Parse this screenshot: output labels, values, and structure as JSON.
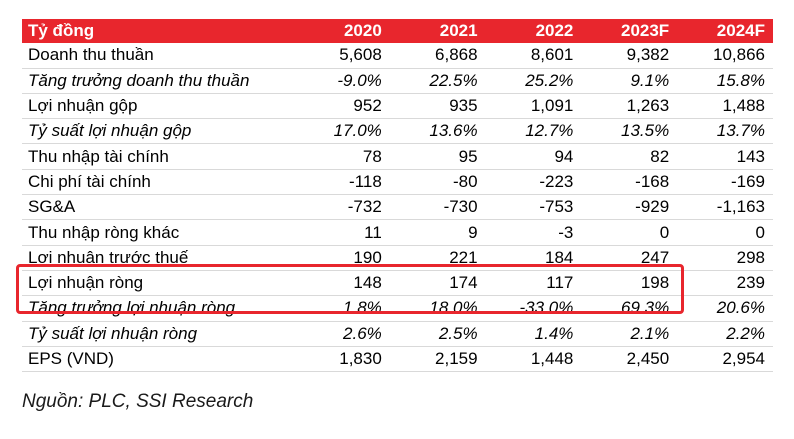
{
  "table": {
    "headers": [
      "Tỷ đồng",
      "2020",
      "2021",
      "2022",
      "2023F",
      "2024F"
    ],
    "rows": [
      {
        "label": "Doanh thu thuần",
        "italic": false,
        "values": [
          "5,608",
          "6,868",
          "8,601",
          "9,382",
          "10,866"
        ]
      },
      {
        "label": "Tăng trưởng doanh thu thuần",
        "italic": true,
        "values": [
          "-9.0%",
          "22.5%",
          "25.2%",
          "9.1%",
          "15.8%"
        ]
      },
      {
        "label": "Lợi nhuận gộp",
        "italic": false,
        "values": [
          "952",
          "935",
          "1,091",
          "1,263",
          "1,488"
        ]
      },
      {
        "label": "Tỷ suất lợi nhuận gộp",
        "italic": true,
        "values": [
          "17.0%",
          "13.6%",
          "12.7%",
          "13.5%",
          "13.7%"
        ]
      },
      {
        "label": "Thu nhập tài chính",
        "italic": false,
        "values": [
          "78",
          "95",
          "94",
          "82",
          "143"
        ]
      },
      {
        "label": "Chi phí tài chính",
        "italic": false,
        "values": [
          "-118",
          "-80",
          "-223",
          "-168",
          "-169"
        ]
      },
      {
        "label": "SG&A",
        "italic": false,
        "values": [
          "-732",
          "-730",
          "-753",
          "-929",
          "-1,163"
        ]
      },
      {
        "label": "Thu nhập ròng khác",
        "italic": false,
        "values": [
          "11",
          "9",
          "-3",
          "0",
          "0"
        ]
      },
      {
        "label": "Lợi nhuận trước thuế",
        "italic": false,
        "values": [
          "190",
          "221",
          "184",
          "247",
          "298"
        ]
      },
      {
        "label": "Lợi nhuận ròng",
        "italic": false,
        "values": [
          "148",
          "174",
          "117",
          "198",
          "239"
        ]
      },
      {
        "label": "Tăng trưởng lợi nhuận ròng",
        "italic": true,
        "values": [
          "1.8%",
          "18.0%",
          "-33.0%",
          "69.3%",
          "20.6%"
        ]
      },
      {
        "label": "Tỷ suất lợi nhuận ròng",
        "italic": true,
        "values": [
          "2.6%",
          "2.5%",
          "1.4%",
          "2.1%",
          "2.2%"
        ]
      },
      {
        "label": "EPS (VND)",
        "italic": false,
        "values": [
          "1,830",
          "2,159",
          "1,448",
          "2,450",
          "2,954"
        ]
      }
    ]
  },
  "source": "Nguồn: PLC, SSI Research",
  "colors": {
    "header_bg": "#e8262d",
    "highlight_border": "#e8262d"
  }
}
